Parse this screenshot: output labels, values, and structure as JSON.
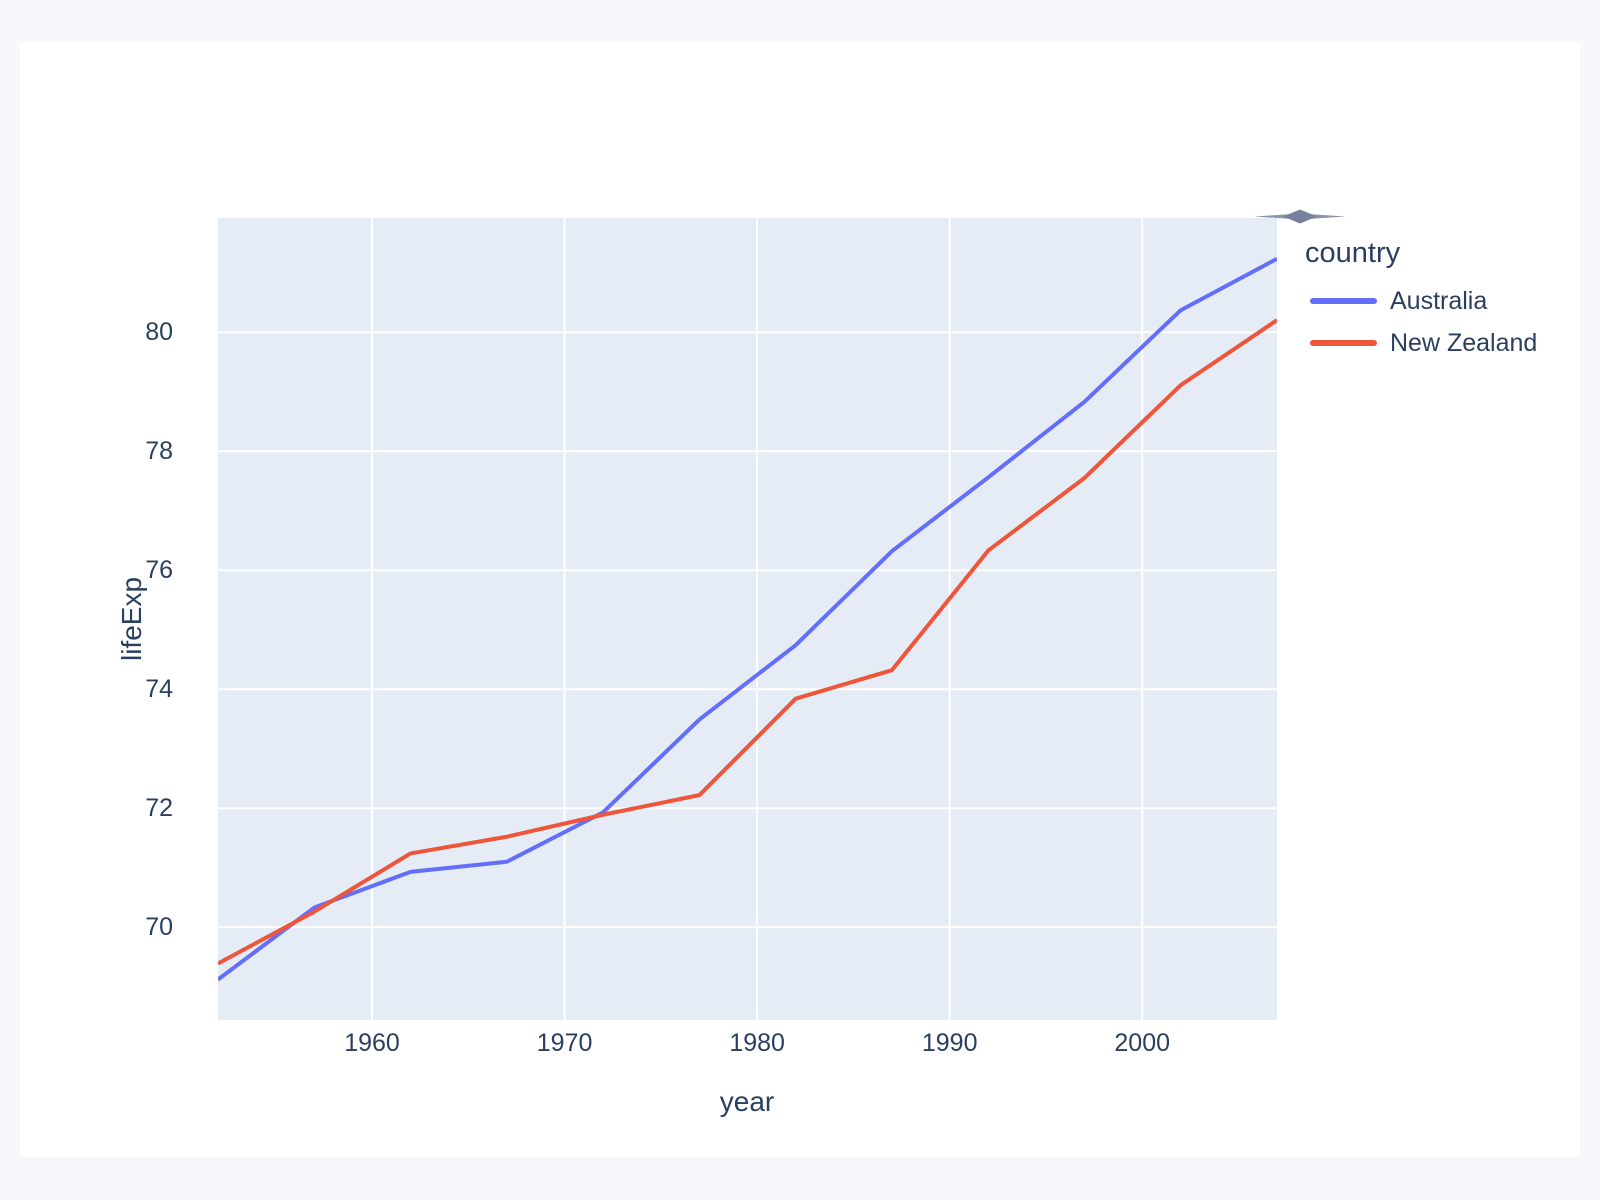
{
  "page": {
    "background_color": "#F7F8FC",
    "card_color": "#FFFFFF"
  },
  "chart_data": {
    "type": "line",
    "title": "",
    "xlabel": "year",
    "ylabel": "lifeExp",
    "x": [
      1952,
      1957,
      1962,
      1967,
      1972,
      1977,
      1982,
      1987,
      1992,
      1997,
      2002,
      2007
    ],
    "series": [
      {
        "name": "Australia",
        "color": "#636EFA",
        "values": [
          69.12,
          70.33,
          70.93,
          71.1,
          71.93,
          73.49,
          74.74,
          76.32,
          77.56,
          78.83,
          80.37,
          81.235
        ]
      },
      {
        "name": "New Zealand",
        "color": "#EF553B",
        "values": [
          69.39,
          70.26,
          71.24,
          71.52,
          71.89,
          72.22,
          73.84,
          74.32,
          76.33,
          77.55,
          79.11,
          80.204
        ]
      }
    ],
    "xlim": [
      1952,
      2007
    ],
    "ylim": [
      68.44,
      81.92
    ],
    "x_ticks": [
      1960,
      1970,
      1980,
      1990,
      2000
    ],
    "y_ticks": [
      70,
      72,
      74,
      76,
      78,
      80
    ],
    "grid": true,
    "grid_color": "#FFFFFF",
    "plot_bgcolor": "#E5ECF6",
    "text_color": "#2A3F5F",
    "legend_position": "outside-top-right"
  },
  "legend": {
    "title": "country",
    "items": [
      {
        "label": "Australia",
        "color": "#636EFA"
      },
      {
        "label": "New Zealand",
        "color": "#EF553B"
      }
    ]
  },
  "icons": {
    "collapse_handle": {
      "name": "diamond-handle-icon",
      "color": "#76819D"
    }
  }
}
